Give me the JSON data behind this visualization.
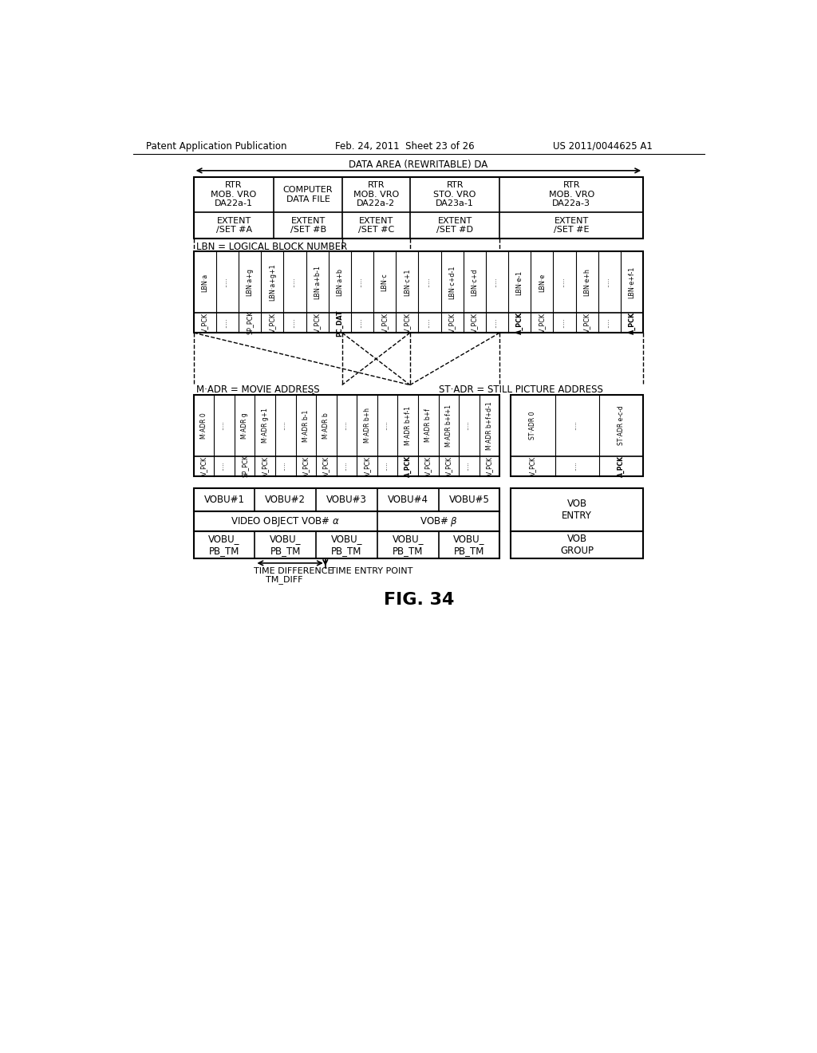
{
  "title": "FIG. 34",
  "header_left": "Patent Application Publication",
  "header_center": "Feb. 24, 2011  Sheet 23 of 26",
  "header_right": "US 2011/0044625 A1",
  "bg_color": "#ffffff",
  "text_color": "#000000"
}
